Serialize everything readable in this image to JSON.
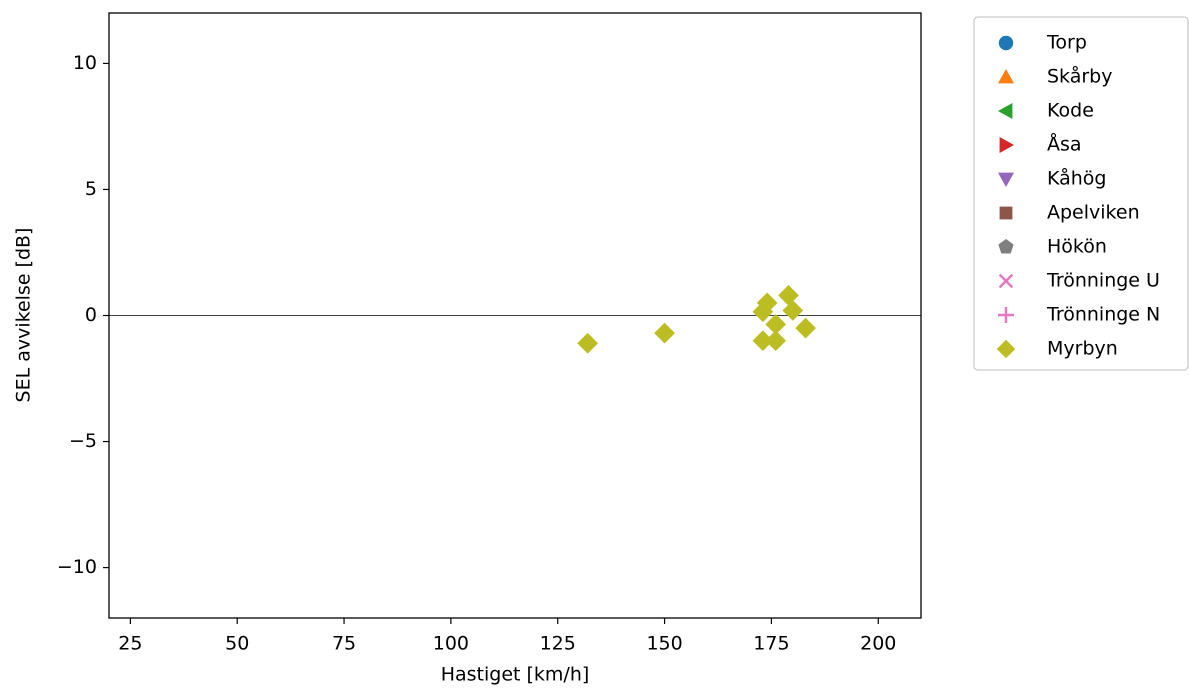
{
  "chart_data": {
    "type": "scatter",
    "xlabel": "Hastiget [km/h]",
    "ylabel": "SEL avvikelse [dB]",
    "xlim": [
      20,
      210
    ],
    "xticks": [
      25,
      50,
      75,
      100,
      125,
      150,
      175,
      200
    ],
    "ylim": [
      -12,
      12
    ],
    "yticks": [
      {
        "value": -10,
        "label": "−10"
      },
      {
        "value": -5,
        "label": "−5"
      },
      0,
      5,
      10
    ],
    "hlines": [
      0
    ],
    "legend": "outside right",
    "series": [
      {
        "name": "Torp",
        "color": "#1f77b4",
        "marker": "circle",
        "x": [],
        "values": []
      },
      {
        "name": "Skårby",
        "color": "#ff7f0e",
        "marker": "triangle-up",
        "x": [],
        "values": []
      },
      {
        "name": "Kode",
        "color": "#2ca02c",
        "marker": "triangle-left",
        "x": [],
        "values": []
      },
      {
        "name": "Åsa",
        "color": "#d62728",
        "marker": "triangle-right",
        "x": [],
        "values": []
      },
      {
        "name": "Kåhög",
        "color": "#9467bd",
        "marker": "triangle-down",
        "x": [],
        "values": []
      },
      {
        "name": "Apelviken",
        "color": "#8c564b",
        "marker": "square",
        "x": [],
        "values": []
      },
      {
        "name": "Hökön",
        "color": "#7f7f7f",
        "marker": "pentagon",
        "x": [],
        "values": []
      },
      {
        "name": "Trönninge U",
        "color": "#e377c2",
        "marker": "x",
        "x": [],
        "values": []
      },
      {
        "name": "Trönninge N",
        "color": "#e377c2",
        "marker": "plus",
        "x": [],
        "values": []
      },
      {
        "name": "Myrbyn",
        "color": "#bcbd22",
        "marker": "diamond",
        "x": [
          132,
          150,
          173,
          176,
          173,
          174,
          176,
          179,
          180,
          183
        ],
        "values": [
          -1.1,
          -0.7,
          -1.0,
          -1.0,
          0.15,
          0.5,
          -0.35,
          0.8,
          0.2,
          -0.5
        ]
      }
    ]
  }
}
